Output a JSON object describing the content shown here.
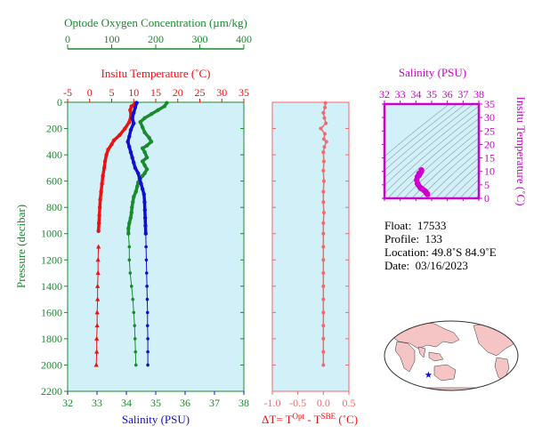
{
  "colors": {
    "oxygen": "#1a8a2e",
    "temperature": "#ee1111",
    "salinity": "#1111cc",
    "delta": "#f26a6a",
    "ts": "#cc00cc",
    "panel_bg": "#d2f0f8",
    "land": "#f5c4c4",
    "ocean": "#ffffff",
    "star": "#1111cc"
  },
  "info": {
    "float_label": "Float:",
    "float_value": "17533",
    "profile_label": "Profile:",
    "profile_value": "133",
    "location_label": "Location:",
    "location_value": "49.8˚S  84.9˚E",
    "date_label": "Date:",
    "date_value": "03/16/2023"
  },
  "chart_data": [
    {
      "type": "line",
      "title": "",
      "ylabel": "Pressure (decibar)",
      "ylim": [
        2200,
        0
      ],
      "yticks": [
        "0",
        "200",
        "400",
        "600",
        "800",
        "1000",
        "1200",
        "1400",
        "1600",
        "1800",
        "2000",
        "2200"
      ],
      "grid": false,
      "axes": [
        {
          "label": "Optode Oxygen Concentration (µm/kg)",
          "lim": [
            0,
            400
          ],
          "ticks": [
            "0",
            "100",
            "200",
            "300",
            "400"
          ]
        },
        {
          "label": "Insitu Temperature (˚C)",
          "lim": [
            -5,
            35
          ],
          "ticks": [
            "-5",
            "0",
            "5",
            "10",
            "15",
            "20",
            "25",
            "30",
            "35"
          ]
        },
        {
          "label": "Salinity (PSU)",
          "lim": [
            32,
            38
          ],
          "ticks": [
            "32",
            "33",
            "34",
            "35",
            "36",
            "37",
            "38"
          ]
        }
      ],
      "series": [
        {
          "key": "oxygen",
          "axis": 0,
          "points": [
            [
              225,
              5
            ],
            [
              220,
              30
            ],
            [
              205,
              60
            ],
            [
              190,
              90
            ],
            [
              175,
              120
            ],
            [
              165,
              150
            ],
            [
              170,
              190
            ],
            [
              175,
              230
            ],
            [
              185,
              270
            ],
            [
              190,
              300
            ],
            [
              180,
              330
            ],
            [
              170,
              350
            ],
            [
              175,
              380
            ],
            [
              180,
              420
            ],
            [
              170,
              450
            ],
            [
              175,
              480
            ],
            [
              180,
              510
            ],
            [
              175,
              540
            ],
            [
              170,
              560
            ],
            [
              165,
              580
            ],
            [
              160,
              610
            ],
            [
              158,
              640
            ],
            [
              155,
              680
            ],
            [
              150,
              720
            ],
            [
              148,
              760
            ],
            [
              146,
              800
            ],
            [
              145,
              840
            ],
            [
              143,
              880
            ],
            [
              140,
              920
            ],
            [
              138,
              960
            ],
            [
              138,
              1000
            ],
            [
              140,
              1100
            ],
            [
              140,
              1200
            ],
            [
              142,
              1300
            ],
            [
              145,
              1400
            ],
            [
              148,
              1500
            ],
            [
              150,
              1600
            ],
            [
              152,
              1700
            ],
            [
              153,
              1800
            ],
            [
              154,
              1900
            ],
            [
              155,
              2000
            ]
          ]
        },
        {
          "key": "temperature",
          "axis": 1,
          "points": [
            [
              10.5,
              5
            ],
            [
              9.5,
              30
            ],
            [
              9.2,
              60
            ],
            [
              9.4,
              100
            ],
            [
              9.0,
              150
            ],
            [
              8.0,
              200
            ],
            [
              6.8,
              250
            ],
            [
              5.5,
              290
            ],
            [
              5.0,
              320
            ],
            [
              4.2,
              360
            ],
            [
              3.8,
              400
            ],
            [
              3.5,
              450
            ],
            [
              3.3,
              500
            ],
            [
              3.0,
              560
            ],
            [
              2.8,
              620
            ],
            [
              2.6,
              680
            ],
            [
              2.4,
              740
            ],
            [
              2.3,
              800
            ],
            [
              2.2,
              860
            ],
            [
              2.1,
              920
            ],
            [
              2.0,
              980
            ],
            [
              2.0,
              1100
            ],
            [
              1.9,
              1200
            ],
            [
              1.9,
              1300
            ],
            [
              1.8,
              1400
            ],
            [
              1.8,
              1500
            ],
            [
              1.7,
              1600
            ],
            [
              1.7,
              1700
            ],
            [
              1.6,
              1800
            ],
            [
              1.6,
              1900
            ],
            [
              1.5,
              2000
            ]
          ]
        },
        {
          "key": "salinity",
          "axis": 2,
          "points": [
            [
              34.35,
              5
            ],
            [
              34.3,
              40
            ],
            [
              34.25,
              80
            ],
            [
              34.2,
              120
            ],
            [
              34.25,
              160
            ],
            [
              34.15,
              210
            ],
            [
              34.1,
              260
            ],
            [
              34.05,
              300
            ],
            [
              34.1,
              340
            ],
            [
              34.15,
              380
            ],
            [
              34.2,
              420
            ],
            [
              34.25,
              460
            ],
            [
              34.3,
              500
            ],
            [
              34.4,
              540
            ],
            [
              34.45,
              580
            ],
            [
              34.5,
              620
            ],
            [
              34.55,
              660
            ],
            [
              34.6,
              700
            ],
            [
              34.62,
              760
            ],
            [
              34.63,
              820
            ],
            [
              34.64,
              880
            ],
            [
              34.65,
              940
            ],
            [
              34.66,
              1000
            ],
            [
              34.67,
              1100
            ],
            [
              34.68,
              1200
            ],
            [
              34.69,
              1300
            ],
            [
              34.7,
              1400
            ],
            [
              34.71,
              1500
            ],
            [
              34.72,
              1600
            ],
            [
              34.72,
              1700
            ],
            [
              34.73,
              1800
            ],
            [
              34.73,
              1900
            ],
            [
              34.73,
              2000
            ]
          ]
        }
      ]
    },
    {
      "type": "line",
      "title": "",
      "xlabel": "ΔT= T^Opt - T^SBE (˚C)",
      "xlabel_parts": [
        "ΔT= T",
        "Opt",
        " - T",
        "SBE",
        " (˚C)"
      ],
      "xlim": [
        -1.0,
        0.5
      ],
      "xticks": [
        "-1.0",
        "-0.5",
        "0.0",
        "0.5"
      ],
      "ylim": [
        2200,
        0
      ],
      "series": [
        {
          "key": "delta",
          "points": [
            [
              0.04,
              5
            ],
            [
              0.03,
              40
            ],
            [
              0.0,
              80
            ],
            [
              0.02,
              120
            ],
            [
              0.05,
              160
            ],
            [
              -0.05,
              200
            ],
            [
              0.03,
              240
            ],
            [
              0.01,
              280
            ],
            [
              0.06,
              300
            ],
            [
              0.02,
              340
            ],
            [
              0.0,
              380
            ],
            [
              0.01,
              450
            ],
            [
              0.0,
              520
            ],
            [
              0.01,
              600
            ],
            [
              0.0,
              680
            ],
            [
              0.0,
              760
            ],
            [
              0.01,
              840
            ],
            [
              0.0,
              920
            ],
            [
              0.0,
              1000
            ],
            [
              0.0,
              1100
            ],
            [
              0.0,
              1200
            ],
            [
              0.0,
              1300
            ],
            [
              0.0,
              1400
            ],
            [
              0.0,
              1500
            ],
            [
              0.0,
              1600
            ],
            [
              0.0,
              1700
            ],
            [
              0.0,
              1800
            ],
            [
              0.0,
              1900
            ],
            [
              0.0,
              2000
            ]
          ]
        }
      ]
    },
    {
      "type": "scatter",
      "title": "",
      "xlabel": "Salinity (PSU)",
      "ylabel": "Insitu Temperature (˚C)",
      "xlim": [
        32,
        38
      ],
      "ylim": [
        0,
        35
      ],
      "xticks": [
        "32",
        "33",
        "34",
        "35",
        "36",
        "37",
        "38"
      ],
      "yticks": [
        "0",
        "5",
        "10",
        "15",
        "20",
        "25",
        "30",
        "35"
      ],
      "series": [
        {
          "key": "ts",
          "points": [
            [
              34.35,
              10.5
            ],
            [
              34.3,
              9.5
            ],
            [
              34.2,
              9.2
            ],
            [
              34.1,
              8.0
            ],
            [
              34.05,
              6.8
            ],
            [
              34.1,
              5.5
            ],
            [
              34.15,
              5.0
            ],
            [
              34.25,
              4.2
            ],
            [
              34.3,
              3.8
            ],
            [
              34.4,
              3.5
            ],
            [
              34.5,
              3.0
            ],
            [
              34.6,
              2.6
            ],
            [
              34.64,
              2.2
            ],
            [
              34.67,
              2.0
            ],
            [
              34.7,
              1.8
            ],
            [
              34.73,
              1.5
            ],
            [
              34.35,
              10.0
            ],
            [
              34.2,
              8.5
            ]
          ]
        }
      ]
    },
    {
      "type": "map",
      "title": "",
      "marker": {
        "lat": -49.8,
        "lon": 84.9
      }
    }
  ]
}
